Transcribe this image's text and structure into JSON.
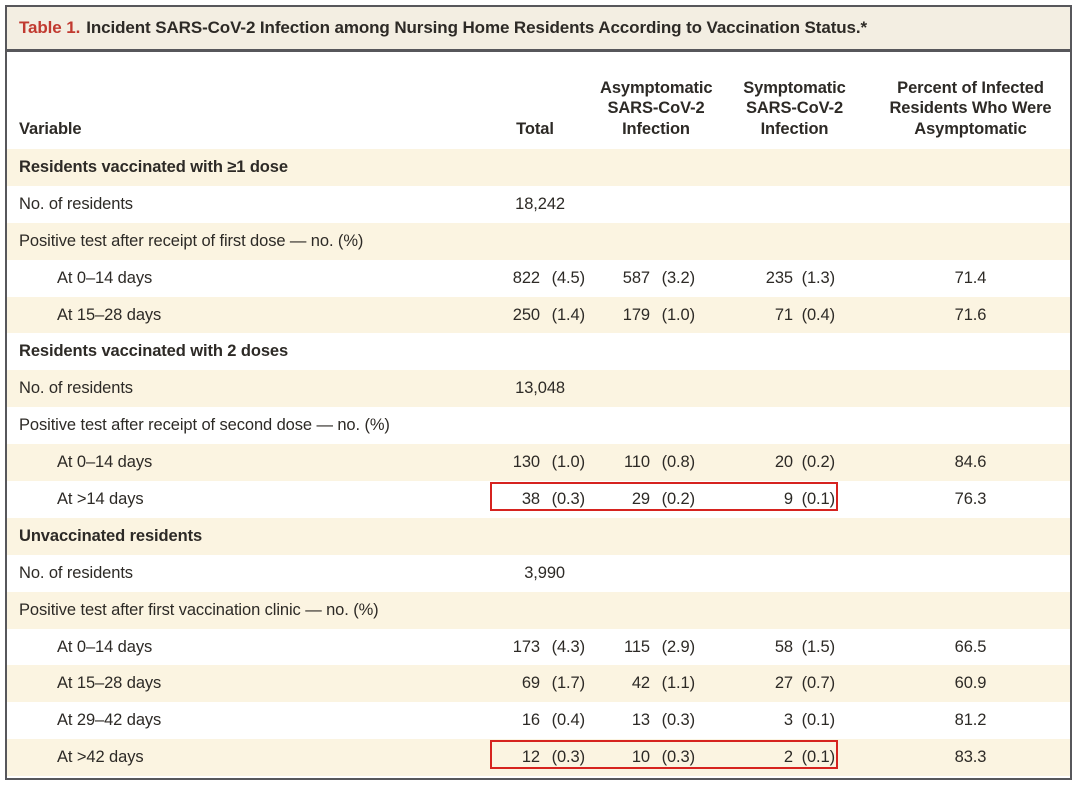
{
  "table": {
    "title_label": "Table 1.",
    "title_text": "Incident SARS-CoV-2 Infection among Nursing Home Residents According to Vaccination Status.*",
    "columns": {
      "variable": {
        "label": "Variable"
      },
      "total": {
        "label": "Total"
      },
      "asymptomatic": {
        "lines": [
          "Asymptomatic",
          "SARS-CoV-2",
          "Infection"
        ]
      },
      "symptomatic": {
        "lines": [
          "Symptomatic",
          "SARS-CoV-2",
          "Infection"
        ]
      },
      "percent": {
        "lines": [
          "Percent of Infected",
          "Residents Who Were",
          "Asymptomatic"
        ]
      }
    },
    "rows": [
      {
        "label": "Residents vaccinated with ≥1 dose",
        "style": "section",
        "indent": false,
        "total": "",
        "asymptomatic": "",
        "symptomatic": "",
        "percent": "",
        "highlight": false
      },
      {
        "label": "No. of residents",
        "style": "normal",
        "indent": false,
        "total": "18,242",
        "asymptomatic": "",
        "symptomatic": "",
        "percent": "",
        "highlight": false
      },
      {
        "label": "Positive test after receipt of first dose — no. (%)",
        "style": "normal",
        "indent": false,
        "total": "",
        "asymptomatic": "",
        "symptomatic": "",
        "percent": "",
        "highlight": false
      },
      {
        "label": "At 0–14 days",
        "style": "normal",
        "indent": true,
        "total": "822 (4.5)",
        "asymptomatic": "587 (3.2)",
        "symptomatic": "235 (1.3)",
        "percent": "71.4",
        "highlight": false
      },
      {
        "label": "At 15–28 days",
        "style": "normal",
        "indent": true,
        "total": "250 (1.4)",
        "asymptomatic": "179 (1.0)",
        "symptomatic": "71 (0.4)",
        "percent": "71.6",
        "highlight": false
      },
      {
        "label": "Residents vaccinated with 2 doses",
        "style": "section",
        "indent": false,
        "total": "",
        "asymptomatic": "",
        "symptomatic": "",
        "percent": "",
        "highlight": false
      },
      {
        "label": "No. of residents",
        "style": "normal",
        "indent": false,
        "total": "13,048",
        "asymptomatic": "",
        "symptomatic": "",
        "percent": "",
        "highlight": false
      },
      {
        "label": "Positive test after receipt of second dose — no. (%)",
        "style": "normal",
        "indent": false,
        "total": "",
        "asymptomatic": "",
        "symptomatic": "",
        "percent": "",
        "highlight": false
      },
      {
        "label": "At 0–14 days",
        "style": "normal",
        "indent": true,
        "total": "130 (1.0)",
        "asymptomatic": "110 (0.8)",
        "symptomatic": "20 (0.2)",
        "percent": "84.6",
        "highlight": false
      },
      {
        "label": "At >14 days",
        "style": "normal",
        "indent": true,
        "total": "38 (0.3)",
        "asymptomatic": "29 (0.2)",
        "symptomatic": "9 (0.1)",
        "percent": "76.3",
        "highlight": true
      },
      {
        "label": "Unvaccinated residents",
        "style": "section",
        "indent": false,
        "total": "",
        "asymptomatic": "",
        "symptomatic": "",
        "percent": "",
        "highlight": false
      },
      {
        "label": "No. of residents",
        "style": "normal",
        "indent": false,
        "total": "3,990",
        "asymptomatic": "",
        "symptomatic": "",
        "percent": "",
        "highlight": false
      },
      {
        "label": "Positive test after first vaccination clinic — no. (%)",
        "style": "normal",
        "indent": false,
        "total": "",
        "asymptomatic": "",
        "symptomatic": "",
        "percent": "",
        "highlight": false
      },
      {
        "label": "At 0–14 days",
        "style": "normal",
        "indent": true,
        "total": "173 (4.3)",
        "asymptomatic": "115 (2.9)",
        "symptomatic": "58 (1.5)",
        "percent": "66.5",
        "highlight": false
      },
      {
        "label": "At 15–28 days",
        "style": "normal",
        "indent": true,
        "total": "69 (1.7)",
        "asymptomatic": "42 (1.1)",
        "symptomatic": "27 (0.7)",
        "percent": "60.9",
        "highlight": false
      },
      {
        "label": "At 29–42 days",
        "style": "normal",
        "indent": true,
        "total": "16 (0.4)",
        "asymptomatic": "13 (0.3)",
        "symptomatic": "3 (0.1)",
        "percent": "81.2",
        "highlight": false
      },
      {
        "label": "At >42 days",
        "style": "normal",
        "indent": true,
        "total": "12 (0.3)",
        "asymptomatic": "10 (0.3)",
        "symptomatic": "2 (0.1)",
        "percent": "83.3",
        "highlight": true
      }
    ]
  },
  "colors": {
    "accent_red": "#c13a30",
    "highlight_red": "#d6231f",
    "row_cream": "#fbf4e1",
    "titlebar_cream": "#f3eee2",
    "frame_gray": "#57575b",
    "text_dark": "#2d2a26"
  }
}
